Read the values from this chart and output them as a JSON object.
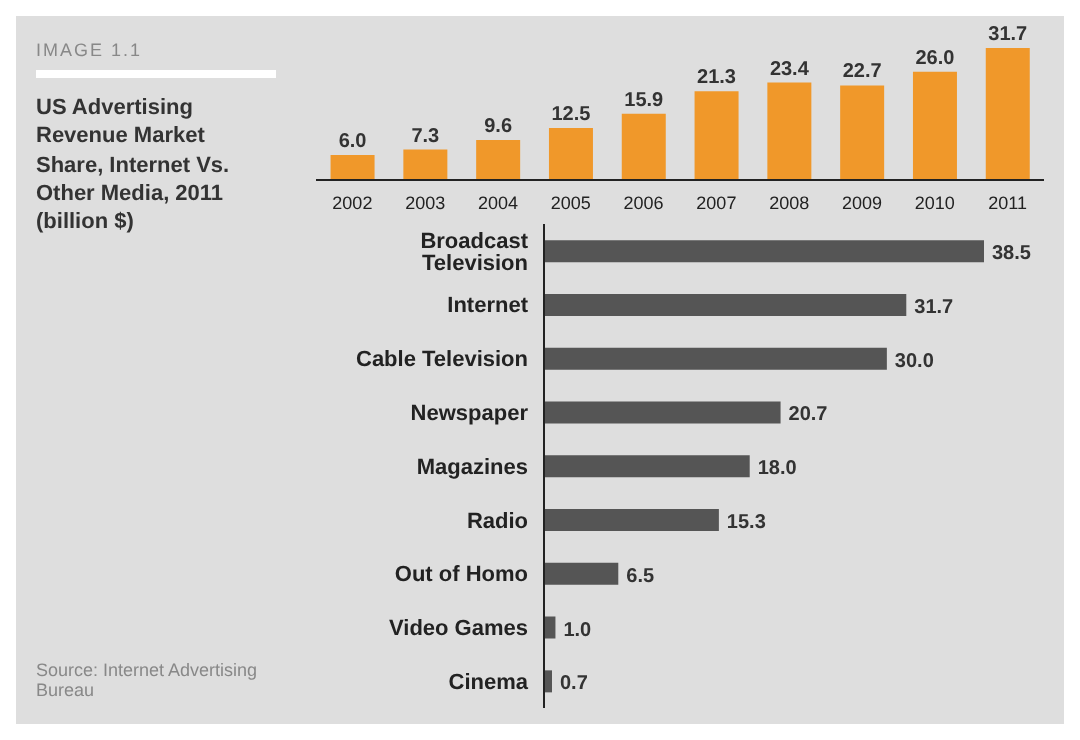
{
  "chart_data": [
    {
      "type": "bar",
      "orientation": "horizontal",
      "title": "US Advertising Revenue Market Share, Internet Vs. Other Media, 2011 (billion $)",
      "annotations": [
        "IMAGE 1.1",
        "Source: Internet Advertising Bureau"
      ],
      "categories": [
        "Broadcast Television",
        "Internet",
        "Cable Television",
        "Newspaper",
        "Magazines",
        "Radio",
        "Out of Homo",
        "Video Games",
        "Cinema"
      ],
      "values": [
        38.5,
        31.7,
        30.0,
        20.7,
        18.0,
        15.3,
        6.5,
        1.0,
        0.7
      ],
      "value_labels": [
        "38.5",
        "31.7",
        "30.0",
        "20.7",
        "18.0",
        "15.3",
        "6.5",
        "1.0",
        "0.7"
      ],
      "color": "#555555",
      "tick_labels": "y"
    },
    {
      "type": "bar",
      "categories": [
        "2002",
        "2003",
        "2004",
        "2005",
        "2006",
        "2007",
        "2008",
        "2009",
        "2010",
        "2011"
      ],
      "values": [
        6.0,
        7.3,
        9.6,
        12.5,
        15.9,
        21.3,
        23.4,
        22.7,
        26.0,
        31.7
      ],
      "value_labels": [
        "6.0",
        "7.3",
        "9.6",
        "12.5",
        "15.9",
        "21.3",
        "23.4",
        "22.7",
        "26.0",
        "31.7"
      ],
      "color": "#f0982a",
      "tick_labels": "x"
    }
  ]
}
